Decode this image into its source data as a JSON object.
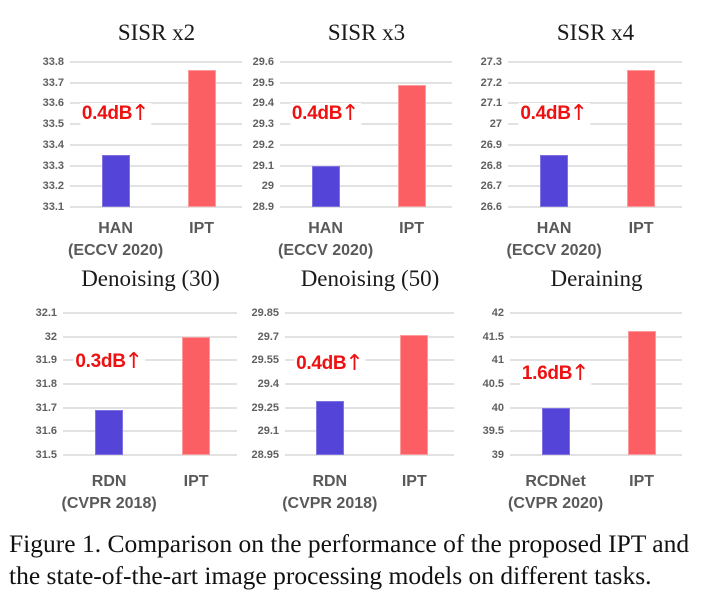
{
  "figure_label": "Figure 1.",
  "caption": {
    "line1": "Figure 1. Comparison on the performance of the proposed IPT and",
    "line2": "the state-of-the-art image processing models on different tasks."
  },
  "colors": {
    "model_bar": "#5444d8",
    "model_bar_edge": "#7f72e3",
    "ipt_bar": "#fb5f63",
    "ipt_bar_edge": "#ff9a9c",
    "grid": "#e2e2e2",
    "annotation": "#ee1111"
  },
  "chart_data": [
    {
      "type": "bar",
      "title": "SISR x2",
      "categories": [
        {
          "name": "HAN",
          "venue": "(ECCV 2020)"
        },
        {
          "name": "IPT",
          "venue": ""
        }
      ],
      "values": [
        33.35,
        33.76
      ],
      "ylim": [
        33.1,
        33.8
      ],
      "ytick_step": 0.1,
      "ylabel": "",
      "xlabel": "",
      "grid": true,
      "annotation": "0.4dB↑",
      "note_top_frac": 0.36
    },
    {
      "type": "bar",
      "title": "SISR x3",
      "categories": [
        {
          "name": "HAN",
          "venue": "(ECCV 2020)"
        },
        {
          "name": "IPT",
          "venue": ""
        }
      ],
      "values": [
        29.1,
        29.49
      ],
      "ylim": [
        28.9,
        29.6
      ],
      "ytick_step": 0.1,
      "ylabel": "",
      "xlabel": "",
      "grid": true,
      "annotation": "0.4dB↑",
      "note_top_frac": 0.36
    },
    {
      "type": "bar",
      "title": "SISR x4",
      "categories": [
        {
          "name": "HAN",
          "venue": "(ECCV 2020)"
        },
        {
          "name": "IPT",
          "venue": ""
        }
      ],
      "values": [
        26.85,
        27.26
      ],
      "ylim": [
        26.6,
        27.3
      ],
      "ytick_step": 0.1,
      "ylabel": "",
      "xlabel": "",
      "grid": true,
      "annotation": "0.4dB↑",
      "note_top_frac": 0.36
    },
    {
      "type": "bar",
      "title": "Denoising (30)",
      "categories": [
        {
          "name": "RDN",
          "venue": "(CVPR 2018)"
        },
        {
          "name": "IPT",
          "venue": ""
        }
      ],
      "values": [
        31.69,
        32.0
      ],
      "ylim": [
        31.5,
        32.1
      ],
      "ytick_step": 0.1,
      "ylabel": "",
      "xlabel": "",
      "grid": true,
      "annotation": "0.3dB↑",
      "note_top_frac": 0.345
    },
    {
      "type": "bar",
      "title": "Denoising (50)",
      "categories": [
        {
          "name": "RDN",
          "venue": "(CVPR 2018)"
        },
        {
          "name": "IPT",
          "venue": ""
        }
      ],
      "values": [
        29.29,
        29.71
      ],
      "ylim": [
        28.95,
        29.85
      ],
      "ytick_step": 0.15,
      "ylabel": "",
      "xlabel": "",
      "grid": true,
      "annotation": "0.4dB↑",
      "note_top_frac": 0.36
    },
    {
      "type": "bar",
      "title": "Deraining",
      "categories": [
        {
          "name": "RCDNet",
          "venue": "(CVPR 2020)"
        },
        {
          "name": "IPT",
          "venue": ""
        }
      ],
      "values": [
        40.0,
        41.62
      ],
      "ylim": [
        39.0,
        42.0
      ],
      "ytick_step": 0.5,
      "ylabel": "",
      "xlabel": "",
      "grid": true,
      "annotation": "1.6dB↑",
      "note_top_frac": 0.43
    }
  ]
}
